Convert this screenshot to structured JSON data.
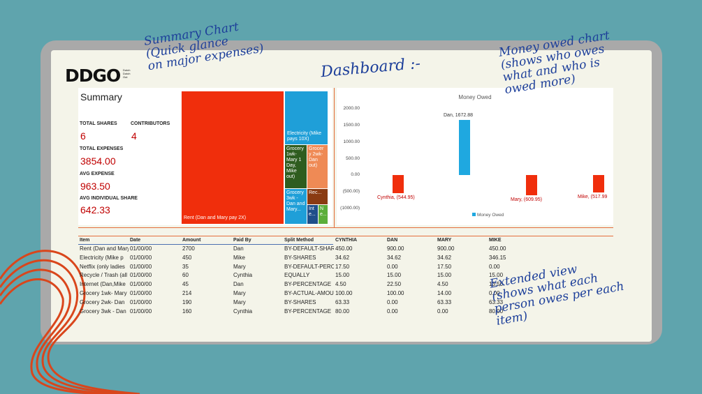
{
  "logo": {
    "text": "DDGO",
    "sub1": "Dutch",
    "sub2": "Dutch",
    "sub3": "Out"
  },
  "annotations": {
    "summary_chart": "Summary Chart\n(Quick glance\non major expenses)",
    "dashboard": "Dashboard :-",
    "money_owed": "Money owed chart\n(shows who owes\nwhat and who is\nowed more)",
    "extended_view": "Extended view\n(shows what each\nperson owes per each\nitem)"
  },
  "summary": {
    "title": "Summary",
    "total_shares_label": "TOTAL SHARES",
    "total_shares": "6",
    "contributors_label": "CONTRIBUTORS",
    "contributors": "4",
    "total_expenses_label": "TOTAL EXPENSES",
    "total_expenses": "3854.00",
    "avg_expense_label": "AVG EXPENSE",
    "avg_expense": "963.50",
    "avg_share_label": "AVG INDIVIDUAL SHARE",
    "avg_share": "642.33"
  },
  "treemap": {
    "rent": "Rent (Dan and Mary pay 2X)",
    "electricity": "Electricity (Mike pays 10X)",
    "grocery1": "Grocery 1wk- Mary 1 Day, Mike out)",
    "grocery2": "Grocer y 2wk- Dan out)",
    "grocery3": "Grocery 3wk - Dan and Mary...",
    "rec": "Rec...",
    "int": "Int e...",
    "n": "N e...",
    "colors": {
      "rent": "#f02e0c",
      "electricity": "#1f9fd8",
      "grocery1": "#2f5d1f",
      "grocery2": "#ef8a55",
      "grocery3": "#1f9fd8",
      "rec": "#8a3b12",
      "int": "#1f4f8a",
      "n": "#5bae3a"
    }
  },
  "chart_data": {
    "type": "bar",
    "title": "Money Owed",
    "categories": [
      "Cynthia",
      "Dan",
      "Mary",
      "Mike"
    ],
    "series": [
      {
        "name": "Money Owed",
        "values": [
          -544.95,
          1672.88,
          -609.95,
          -517.99
        ]
      }
    ],
    "data_labels": [
      "Cynthia, (544.95)",
      "Dan, 1672.88",
      "Mary, (609.95)",
      "Mike, (517.99"
    ],
    "y_ticks": [
      "2000.00",
      "1500.00",
      "1000.00",
      "500.00",
      "0.00",
      "(500.00)",
      "(1000.00)"
    ],
    "ylim": [
      -1000,
      2000
    ],
    "colors": {
      "positive": "#1fa8e0",
      "negative": "#f02e0c"
    },
    "legend": "bottom"
  },
  "table": {
    "headers": [
      "Item",
      "Date",
      "Amount",
      "Paid By",
      "Split Method",
      "CYNTHIA",
      "DAN",
      "MARY",
      "MIKE"
    ],
    "rows": [
      [
        "Rent (Dan and Mary",
        "01/00/00",
        "2700",
        "Dan",
        "BY-DEFAULT-SHARES",
        "450.00",
        "900.00",
        "900.00",
        "450.00"
      ],
      [
        "Electricity (Mike p",
        "01/00/00",
        "450",
        "Mike",
        "BY-SHARES",
        "34.62",
        "34.62",
        "34.62",
        "346.15"
      ],
      [
        "Netflix (only ladies",
        "01/00/00",
        "35",
        "Mary",
        "BY-DEFAULT-PERCENT",
        "17.50",
        "0.00",
        "17.50",
        "0.00"
      ],
      [
        "Recycle / Trash (all",
        "01/00/00",
        "60",
        "Cynthia",
        "EQUALLY",
        "15.00",
        "15.00",
        "15.00",
        "15.00"
      ],
      [
        "Internet (Dan,Mike",
        "01/00/00",
        "45",
        "Dan",
        "BY-PERCENTAGE",
        "4.50",
        "22.50",
        "4.50",
        "13.50"
      ],
      [
        "Grocery 1wk- Mary",
        "01/00/00",
        "214",
        "Mary",
        "BY-ACTUAL-AMOUNT",
        "100.00",
        "100.00",
        "14.00",
        "0.00"
      ],
      [
        "Grocery 2wk- Dan",
        "01/00/00",
        "190",
        "Mary",
        "BY-SHARES",
        "63.33",
        "0.00",
        "63.33",
        "63.33"
      ],
      [
        "Grocery 3wk - Dan",
        "01/00/00",
        "160",
        "Cynthia",
        "BY-PERCENTAGE",
        "80.00",
        "0.00",
        "0.00",
        "80.00"
      ]
    ]
  }
}
